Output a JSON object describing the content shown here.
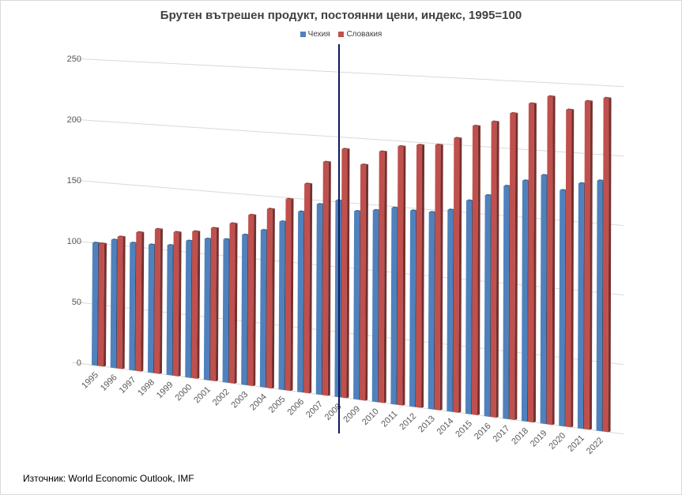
{
  "chart_data": {
    "type": "bar",
    "title": "Брутен вътрешен продукт, постоянни цени, индекс, 1995=100",
    "source": "Източник: World Economic Outlook, IMF",
    "legend_position": "top",
    "ylim": [
      0,
      250
    ],
    "yticks": [
      0,
      50,
      100,
      150,
      200,
      250
    ],
    "grid": true,
    "categories": [
      "1995",
      "1996",
      "1997",
      "1998",
      "1999",
      "2000",
      "2001",
      "2002",
      "2003",
      "2004",
      "2005",
      "2006",
      "2007",
      "2008",
      "2009",
      "2010",
      "2011",
      "2012",
      "2013",
      "2014",
      "2015",
      "2016",
      "2017",
      "2018",
      "2019",
      "2020",
      "2021",
      "2022"
    ],
    "series": [
      {
        "name": "Чехия",
        "color": "#4f81bd",
        "values": [
          100,
          104,
          103,
          103,
          104,
          109,
          112,
          113,
          118,
          123,
          131,
          140,
          147,
          151,
          144,
          146,
          149,
          148,
          148,
          151,
          159,
          164,
          172,
          177,
          182,
          172,
          178,
          181
        ]
      },
      {
        "name": "Словакия",
        "color": "#c0504d",
        "values": [
          100,
          107,
          112,
          116,
          115,
          117,
          121,
          126,
          134,
          140,
          149,
          162,
          180,
          191,
          180,
          191,
          196,
          198,
          199,
          205,
          215,
          219,
          226,
          234,
          240,
          231,
          238,
          241
        ]
      }
    ],
    "marker_line_color": "#0d1a5c"
  }
}
